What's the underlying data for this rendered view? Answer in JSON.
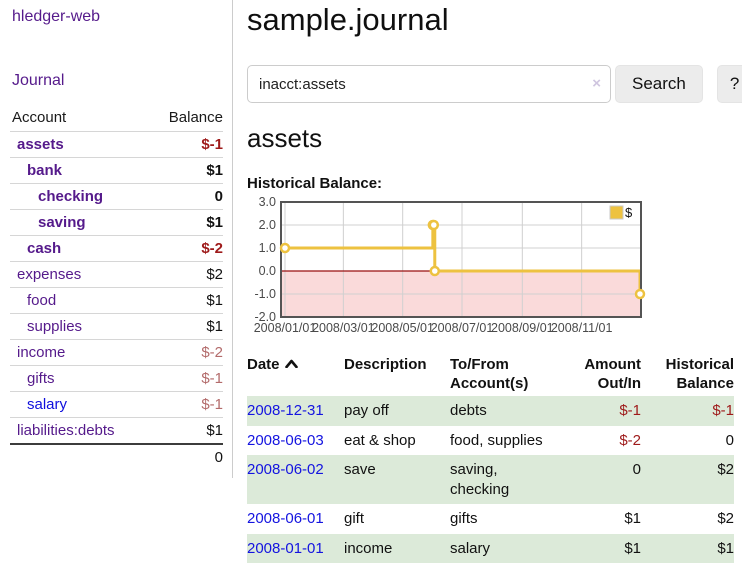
{
  "sidebar": {
    "app_title": "hledger-web",
    "journal_link": "Journal",
    "accounts_header": {
      "account": "Account",
      "balance": "Balance"
    },
    "accounts": [
      {
        "name": "assets",
        "balance": "$-1",
        "level": 1,
        "bold": true,
        "balance_color": "strong"
      },
      {
        "name": "bank",
        "balance": "$1",
        "level": 2,
        "bold": true,
        "balance_color": "normal"
      },
      {
        "name": "checking",
        "balance": "0",
        "level": 3,
        "bold": true,
        "balance_color": "normal"
      },
      {
        "name": "saving",
        "balance": "$1",
        "level": 3,
        "bold": true,
        "balance_color": "normal"
      },
      {
        "name": "cash",
        "balance": "$-2",
        "level": 2,
        "bold": true,
        "balance_color": "strong"
      },
      {
        "name": "expenses",
        "balance": "$2",
        "level": 1,
        "bold": false,
        "balance_color": "normal"
      },
      {
        "name": "food",
        "balance": "$1",
        "level": 2,
        "bold": false,
        "balance_color": "normal"
      },
      {
        "name": "supplies",
        "balance": "$1",
        "level": 2,
        "bold": false,
        "balance_color": "normal"
      },
      {
        "name": "income",
        "balance": "$-2",
        "level": 1,
        "bold": false,
        "balance_color": "soft"
      },
      {
        "name": "gifts",
        "balance": "$-1",
        "level": 2,
        "bold": false,
        "balance_color": "soft"
      },
      {
        "name": "salary",
        "balance": "$-1",
        "level": 2,
        "bold": false,
        "balance_color": "soft",
        "link_color": "blue"
      },
      {
        "name": "liabilities:debts",
        "balance": "$1",
        "level": 1,
        "bold": false,
        "balance_color": "normal"
      }
    ],
    "total": "0"
  },
  "search": {
    "value": "inacct:assets",
    "clear_icon": "×",
    "search_button": "Search",
    "help_button": "?"
  },
  "main": {
    "title": "sample.journal",
    "account_heading": "assets",
    "chart_label": "Historical Balance:"
  },
  "chart_data": {
    "type": "line",
    "step": true,
    "title": "Historical Balance",
    "series": [
      {
        "name": "$",
        "color": "#edc240",
        "points": [
          [
            "2008-01-01",
            1
          ],
          [
            "2008-06-01",
            2
          ],
          [
            "2008-06-02",
            2
          ],
          [
            "2008-06-03",
            0
          ],
          [
            "2008-12-31",
            -1
          ]
        ]
      }
    ],
    "x_ticks": [
      "2008/01/01",
      "2008/03/01",
      "2008/05/01",
      "2008/07/01",
      "2008/09/01",
      "2008/11/01"
    ],
    "y_ticks": [
      "3.0",
      "2.0",
      "1.0",
      "0.0",
      "-1.0",
      "-2.0"
    ],
    "ylim": [
      -2,
      3
    ],
    "xlim": [
      "2008-01-01",
      "2008-12-31"
    ],
    "legend": {
      "label": "$",
      "position": "top-right"
    },
    "grid": true,
    "colors": {
      "line": "#edc240",
      "negative_region": "#fadada",
      "zero_line": "#991111",
      "gridline": "#d0d0d0",
      "plot_border": "#545454",
      "tick_text": "#4a4a4a"
    }
  },
  "register": {
    "headers": {
      "date": "Date",
      "description": "Description",
      "account": "To/From Account(s)",
      "amount": "Amount Out/In",
      "balance": "Historical Balance"
    },
    "rows": [
      {
        "date": "2008-12-31",
        "description": "pay off",
        "accounts": "debts",
        "amount": "$-1",
        "amount_negative": true,
        "balance": "$-1",
        "balance_negative": true,
        "stripe": true
      },
      {
        "date": "2008-06-03",
        "description": "eat & shop",
        "accounts": "food, supplies",
        "amount": "$-2",
        "amount_negative": true,
        "balance": "0",
        "balance_negative": false,
        "stripe": false
      },
      {
        "date": "2008-06-02",
        "description": "save",
        "accounts": "saving,\nchecking",
        "amount": "0",
        "amount_negative": false,
        "balance": "$2",
        "balance_negative": false,
        "stripe": true
      },
      {
        "date": "2008-06-01",
        "description": "gift",
        "accounts": "gifts",
        "amount": "$1",
        "amount_negative": false,
        "balance": "$2",
        "balance_negative": false,
        "stripe": false
      },
      {
        "date": "2008-01-01",
        "description": "income",
        "accounts": "salary",
        "amount": "$1",
        "amount_negative": false,
        "balance": "$1",
        "balance_negative": false,
        "stripe": true
      }
    ]
  },
  "colors": {
    "link_purple": "#551a8b",
    "link_blue": "#1414e0",
    "negative_strong": "#9e1a1a",
    "negative_soft": "#b36b6b",
    "stripe_green": "#dcead9",
    "accent_gold": "#edc240"
  }
}
